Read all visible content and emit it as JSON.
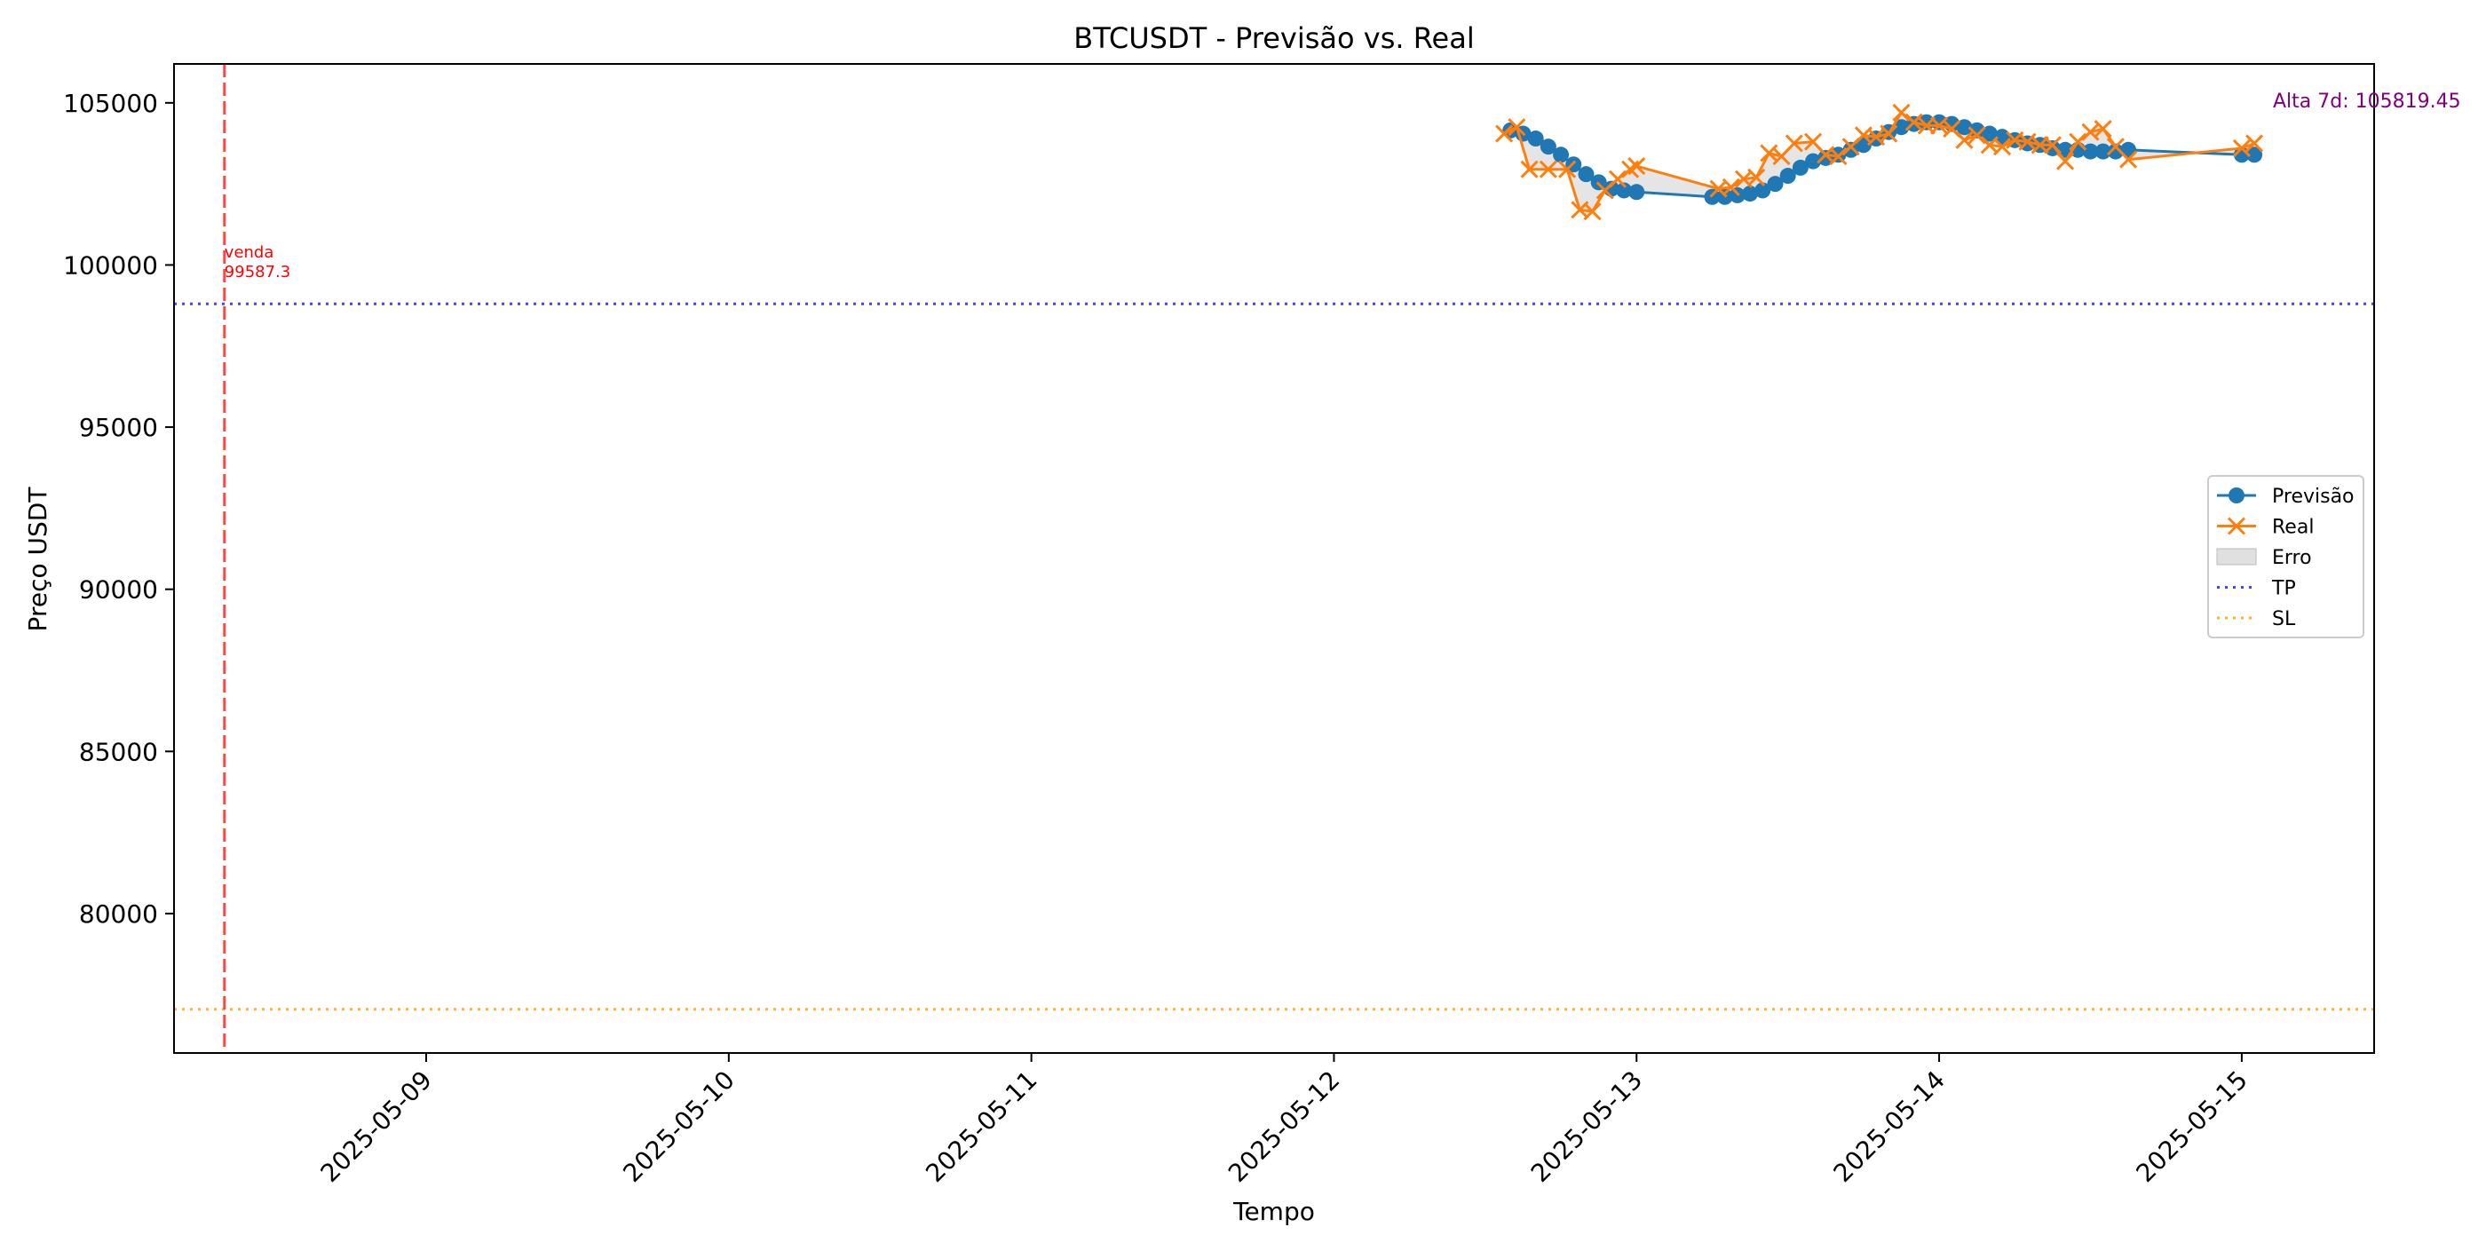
{
  "chart_data": {
    "type": "line",
    "title": "BTCUSDT - Previsão vs. Real",
    "xlabel": "Tempo",
    "ylabel": "Preço USDT",
    "x_type": "datetime",
    "xlim": [
      "2025-05-08 04:00",
      "2025-05-15 10:30"
    ],
    "ylim": [
      75700,
      106200
    ],
    "x_ticks": [
      "2025-05-09",
      "2025-05-10",
      "2025-05-11",
      "2025-05-12",
      "2025-05-13",
      "2025-05-14",
      "2025-05-15"
    ],
    "y_ticks": [
      80000,
      85000,
      90000,
      95000,
      100000,
      105000
    ],
    "grid": false,
    "legend_position": "center right",
    "series": [
      {
        "name": "Previsão",
        "color": "#1f77b4",
        "marker": "circle",
        "x": [
          "2025-05-12 14:00",
          "2025-05-12 15:00",
          "2025-05-12 16:00",
          "2025-05-12 17:00",
          "2025-05-12 18:00",
          "2025-05-12 19:00",
          "2025-05-12 20:00",
          "2025-05-12 21:00",
          "2025-05-12 22:00",
          "2025-05-12 23:00",
          "2025-05-13 00:00",
          "2025-05-13 06:00",
          "2025-05-13 07:00",
          "2025-05-13 08:00",
          "2025-05-13 09:00",
          "2025-05-13 10:00",
          "2025-05-13 11:00",
          "2025-05-13 12:00",
          "2025-05-13 13:00",
          "2025-05-13 14:00",
          "2025-05-13 15:00",
          "2025-05-13 16:00",
          "2025-05-13 17:00",
          "2025-05-13 18:00",
          "2025-05-13 19:00",
          "2025-05-13 20:00",
          "2025-05-13 21:00",
          "2025-05-13 22:00",
          "2025-05-13 23:00",
          "2025-05-14 00:00",
          "2025-05-14 01:00",
          "2025-05-14 02:00",
          "2025-05-14 03:00",
          "2025-05-14 04:00",
          "2025-05-14 05:00",
          "2025-05-14 06:00",
          "2025-05-14 07:00",
          "2025-05-14 08:00",
          "2025-05-14 09:00",
          "2025-05-14 10:00",
          "2025-05-14 11:00",
          "2025-05-14 12:00",
          "2025-05-14 13:00",
          "2025-05-14 14:00",
          "2025-05-14 15:00",
          "2025-05-15 00:00",
          "2025-05-15 01:00"
        ],
        "y": [
          104150,
          104050,
          103900,
          103650,
          103400,
          103100,
          102800,
          102550,
          102350,
          102300,
          102250,
          102100,
          102100,
          102150,
          102200,
          102300,
          102500,
          102750,
          103000,
          103200,
          103300,
          103400,
          103550,
          103700,
          103900,
          104100,
          104250,
          104350,
          104400,
          104400,
          104350,
          104250,
          104150,
          104050,
          103950,
          103850,
          103750,
          103700,
          103600,
          103550,
          103550,
          103500,
          103500,
          103500,
          103550,
          103400,
          103400
        ]
      },
      {
        "name": "Real",
        "color": "#ff7f0e",
        "marker": "x",
        "x": [
          "2025-05-12 13:30",
          "2025-05-12 14:30",
          "2025-05-12 15:30",
          "2025-05-12 17:00",
          "2025-05-12 18:30",
          "2025-05-12 19:30",
          "2025-05-12 20:30",
          "2025-05-12 21:30",
          "2025-05-12 22:30",
          "2025-05-12 23:30",
          "2025-05-13 00:00",
          "2025-05-13 06:30",
          "2025-05-13 07:30",
          "2025-05-13 08:30",
          "2025-05-13 09:30",
          "2025-05-13 10:30",
          "2025-05-13 11:30",
          "2025-05-13 12:30",
          "2025-05-13 14:00",
          "2025-05-13 15:00",
          "2025-05-13 16:00",
          "2025-05-13 17:00",
          "2025-05-13 18:00",
          "2025-05-13 19:00",
          "2025-05-13 20:00",
          "2025-05-13 21:00",
          "2025-05-13 22:00",
          "2025-05-13 23:00",
          "2025-05-14 00:00",
          "2025-05-14 01:00",
          "2025-05-14 02:00",
          "2025-05-14 03:00",
          "2025-05-14 04:00",
          "2025-05-14 05:00",
          "2025-05-14 06:00",
          "2025-05-14 07:00",
          "2025-05-14 08:00",
          "2025-05-14 09:00",
          "2025-05-14 10:00",
          "2025-05-14 11:00",
          "2025-05-14 12:00",
          "2025-05-14 13:00",
          "2025-05-14 14:00",
          "2025-05-14 15:00",
          "2025-05-15 00:00",
          "2025-05-15 01:00"
        ],
        "y": [
          104050,
          104250,
          102950,
          102950,
          102950,
          101700,
          101650,
          102300,
          102650,
          102950,
          103050,
          102350,
          102400,
          102650,
          102700,
          103450,
          103350,
          103750,
          103800,
          103400,
          103350,
          103650,
          104000,
          103950,
          104050,
          104700,
          104400,
          104300,
          104300,
          104200,
          103850,
          104000,
          103700,
          103650,
          103850,
          103800,
          103700,
          103700,
          103200,
          103800,
          104100,
          104200,
          103650,
          103250,
          103600,
          103750
        ]
      }
    ],
    "fill_between": {
      "name": "Erro",
      "between": [
        "Previsão",
        "Real"
      ],
      "color": "#d3d3d3"
    },
    "hlines": [
      {
        "name": "TP",
        "y": 98800,
        "color": "#4444ff",
        "style": "dotted"
      },
      {
        "name": "SL",
        "y": 77050,
        "color": "#ffb22e",
        "style": "dotted"
      }
    ],
    "vlines": [
      {
        "x": "2025-05-08 08:00",
        "color": "#ff4444",
        "style": "dashed"
      }
    ],
    "annotations": [
      {
        "text_lines": [
          "venda",
          "99587.3"
        ],
        "color": "#ff0000"
      },
      {
        "text": "Alta 7d: 105819.45",
        "color": "#800080"
      }
    ],
    "legend": [
      {
        "label": "Previsão",
        "kind": "line-circle",
        "color": "#1f77b4"
      },
      {
        "label": "Real",
        "kind": "line-x",
        "color": "#ff7f0e"
      },
      {
        "label": "Erro",
        "kind": "patch",
        "color": "#d3d3d3"
      },
      {
        "label": "TP",
        "kind": "dotted",
        "color": "#4444ff"
      },
      {
        "label": "SL",
        "kind": "dotted",
        "color": "#ffb22e"
      }
    ]
  }
}
